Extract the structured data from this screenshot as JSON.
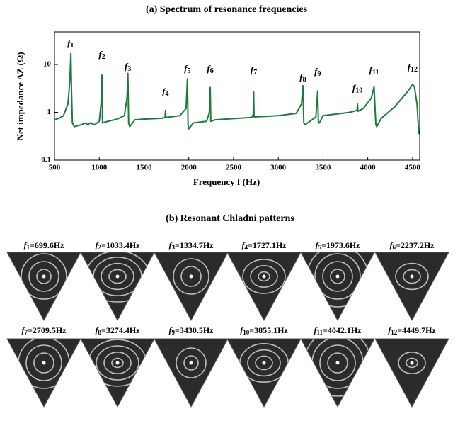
{
  "chart_data": {
    "type": "line",
    "title": "(a) Spectrum of resonance frequencies",
    "xlabel": "Frequency f (Hz)",
    "ylabel": "Net impedance ΔZ (Ω)",
    "x": [
      500,
      550,
      600,
      650,
      670,
      683,
      690,
      700,
      720,
      800,
      850,
      870,
      900,
      950,
      1000,
      1020,
      1030,
      1036,
      1100,
      1200,
      1280,
      1310,
      1320,
      1328,
      1340,
      1400,
      1500,
      1700,
      1735,
      1740,
      1745,
      1900,
      1970,
      1985,
      1992,
      2000,
      2050,
      2200,
      2230,
      2240,
      2246,
      2300,
      2700,
      2720,
      2725,
      2730,
      3000,
      3200,
      3260,
      3275,
      3285,
      3300,
      3420,
      3440,
      3448,
      3460,
      3500,
      3800,
      3880,
      3885,
      3890,
      3950,
      4040,
      4070,
      4090,
      4100,
      4150,
      4300,
      4450,
      4500,
      4520,
      4550,
      4570
    ],
    "values": [
      0.7,
      0.75,
      0.85,
      1.5,
      4,
      17,
      3,
      0.6,
      0.5,
      0.55,
      0.6,
      0.55,
      0.6,
      0.55,
      0.65,
      1.5,
      6,
      0.6,
      0.65,
      0.72,
      0.85,
      2,
      6.5,
      0.6,
      0.5,
      0.7,
      0.72,
      0.75,
      0.78,
      1.1,
      0.78,
      0.85,
      1.2,
      5,
      0.55,
      0.45,
      0.6,
      0.65,
      1,
      3.3,
      0.65,
      0.7,
      0.78,
      0.9,
      2.7,
      0.8,
      0.85,
      0.95,
      1.5,
      3.6,
      0.6,
      0.55,
      0.8,
      2.8,
      0.6,
      0.6,
      0.85,
      1,
      1.1,
      1.5,
      1.05,
      1.2,
      2,
      3.4,
      0.55,
      0.5,
      0.75,
      1.3,
      2.8,
      3.8,
      3.5,
      1.5,
      0.35
    ],
    "color": "#1e7b3e",
    "xlim": [
      500,
      4580
    ],
    "xticks": [
      500,
      1000,
      1500,
      2000,
      2500,
      3000,
      3500,
      4000,
      4500
    ],
    "ylim": [
      0.1,
      48
    ],
    "yticks": [
      0.1,
      1,
      10
    ],
    "yscale": "log",
    "annotations": [
      {
        "symbol": "f",
        "index": "1",
        "x": 680,
        "y": 27
      },
      {
        "symbol": "f",
        "index": "2",
        "x": 1030,
        "y": 15.6
      },
      {
        "symbol": "f",
        "index": "3",
        "x": 1320,
        "y": 8.7
      },
      {
        "symbol": "f",
        "index": "4",
        "x": 1740,
        "y": 2.6
      },
      {
        "symbol": "f",
        "index": "5",
        "x": 1985,
        "y": 7.9
      },
      {
        "symbol": "f",
        "index": "6",
        "x": 2240,
        "y": 7.9
      },
      {
        "symbol": "f",
        "index": "7",
        "x": 2725,
        "y": 7.4
      },
      {
        "symbol": "f",
        "index": "8",
        "x": 3275,
        "y": 5.2
      },
      {
        "symbol": "f",
        "index": "9",
        "x": 3440,
        "y": 6.9
      },
      {
        "symbol": "f",
        "index": "10",
        "x": 3885,
        "y": 3.1
      },
      {
        "symbol": "f",
        "index": "11",
        "x": 4070,
        "y": 7.4
      },
      {
        "symbol": "f",
        "index": "12",
        "x": 4500,
        "y": 8.4
      }
    ]
  },
  "panel_b": {
    "title": "(b) Resonant Chladni patterns",
    "patterns": [
      {
        "symbol": "f",
        "index": "1",
        "frequency": "=699.6Hz"
      },
      {
        "symbol": "f",
        "index": "2",
        "frequency": "=1033.4Hz"
      },
      {
        "symbol": "f",
        "index": "3",
        "frequency": "=1334.7Hz"
      },
      {
        "symbol": "f",
        "index": "4",
        "frequency": "=1727.1Hz"
      },
      {
        "symbol": "f",
        "index": "5",
        "frequency": "=1973.6Hz"
      },
      {
        "symbol": "f",
        "index": "6",
        "frequency": "=2237.2Hz"
      },
      {
        "symbol": "f",
        "index": "7",
        "frequency": "=2709.5Hz"
      },
      {
        "symbol": "f",
        "index": "8",
        "frequency": "=3274.4Hz"
      },
      {
        "symbol": "f",
        "index": "9",
        "frequency": "=3430.5Hz"
      },
      {
        "symbol": "f",
        "index": "10",
        "frequency": "=3855.1Hz"
      },
      {
        "symbol": "f",
        "index": "11",
        "frequency": "=4042.1Hz"
      },
      {
        "symbol": "f",
        "index": "12",
        "frequency": "=4449.7Hz"
      }
    ]
  }
}
